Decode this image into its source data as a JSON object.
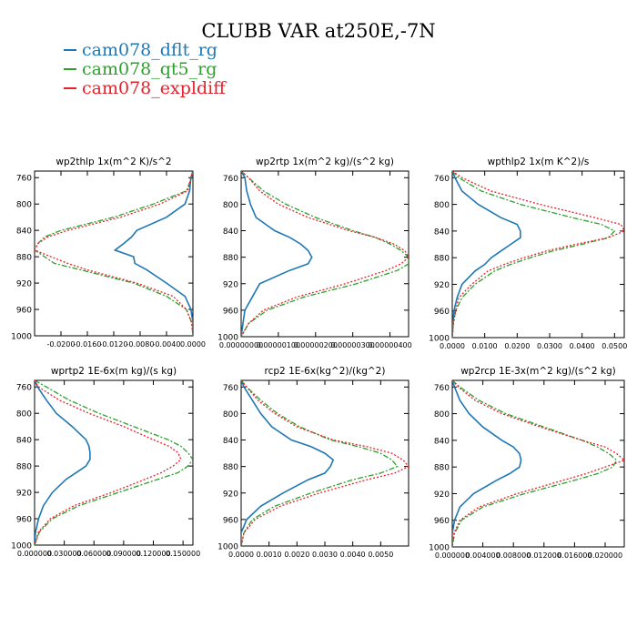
{
  "title": "CLUBB VAR at250E,-7N",
  "legend": [
    {
      "name": "cam078_dflt_rg",
      "color": "#1f77b4"
    },
    {
      "name": "cam078_qt5_rg",
      "color": "#2ca02c"
    },
    {
      "name": "cam078_expldiff",
      "color": "#e8202a"
    }
  ],
  "chart_data": [
    {
      "type": "line",
      "title": "wp2thlp   1x(m^2 K)/s^2",
      "xlim": [
        -0.024,
        0.0
      ],
      "ylim": [
        1000,
        750
      ],
      "x_ticks": [
        "-0.0200",
        "-0.0160",
        "-0.0120",
        "-0.0080",
        "-0.0040",
        "0.0000"
      ],
      "x_tick_values": [
        -0.02,
        -0.016,
        -0.012,
        -0.008,
        -0.004,
        0.0
      ],
      "y_ticks": [
        760,
        800,
        840,
        880,
        920,
        960,
        1000
      ],
      "y": [
        750,
        760,
        780,
        800,
        820,
        840,
        850,
        860,
        870,
        880,
        890,
        900,
        920,
        940,
        960,
        980,
        1000
      ],
      "series": [
        {
          "name": "cam078_dflt_rg",
          "values": [
            0.0,
            -0.0003,
            -0.0005,
            -0.0012,
            -0.004,
            -0.0085,
            -0.0093,
            -0.0105,
            -0.0118,
            -0.009,
            -0.0088,
            -0.007,
            -0.004,
            -0.0012,
            -0.0003,
            0.0,
            0.0
          ]
        },
        {
          "name": "cam078_qt5_rg",
          "values": [
            0.0,
            -0.0002,
            -0.001,
            -0.006,
            -0.012,
            -0.02,
            -0.0225,
            -0.0235,
            -0.024,
            -0.0225,
            -0.021,
            -0.017,
            -0.009,
            -0.004,
            -0.001,
            -0.0002,
            0.0
          ]
        },
        {
          "name": "cam078_expldiff",
          "values": [
            0.0,
            -0.0003,
            -0.0008,
            -0.005,
            -0.011,
            -0.019,
            -0.022,
            -0.0235,
            -0.024,
            -0.0215,
            -0.019,
            -0.016,
            -0.0085,
            -0.003,
            -0.001,
            -0.0002,
            0.0
          ]
        }
      ]
    },
    {
      "type": "line",
      "title": "wp2rtp   1x(m^2 kg)/(s^2 kg)",
      "xlim": [
        0.0,
        4.5e-06
      ],
      "ylim": [
        1000,
        750
      ],
      "x_ticks": [
        "0.00000000",
        "0.00000100",
        "0.00000200",
        "0.00000300",
        "0.00000400"
      ],
      "x_tick_values": [
        0.0,
        1e-06,
        2e-06,
        3e-06,
        4e-06
      ],
      "y_ticks": [
        760,
        800,
        840,
        880,
        920,
        960,
        1000
      ],
      "y": [
        750,
        760,
        780,
        800,
        820,
        840,
        850,
        860,
        870,
        880,
        890,
        900,
        920,
        940,
        960,
        980,
        1000
      ],
      "series": [
        {
          "name": "cam078_dflt_rg",
          "values": [
            0.0,
            1e-07,
            1.5e-07,
            2.5e-07,
            4e-07,
            9e-07,
            1.3e-06,
            1.6e-06,
            1.8e-06,
            1.9e-06,
            1.8e-06,
            1.3e-06,
            5e-07,
            3e-07,
            1e-07,
            5e-08,
            0.0
          ]
        },
        {
          "name": "cam078_qt5_rg",
          "values": [
            0.0,
            2e-07,
            6e-07,
            1.2e-06,
            2e-06,
            3e-06,
            3.6e-06,
            4e-06,
            4.3e-06,
            4.5e-06,
            4.5e-06,
            4.2e-06,
            3.1e-06,
            1.7e-06,
            7e-07,
            2e-07,
            0.0
          ]
        },
        {
          "name": "cam078_expldiff",
          "values": [
            0.0,
            2e-07,
            5e-07,
            1e-06,
            1.8e-06,
            2.9e-06,
            3.6e-06,
            4.1e-06,
            4.4e-06,
            4.5e-06,
            4.3e-06,
            3.9e-06,
            2.8e-06,
            1.5e-06,
            6e-07,
            2e-07,
            0.0
          ]
        }
      ]
    },
    {
      "type": "line",
      "title": "wpthlp2   1x(m K^2)/s",
      "xlim": [
        0.0,
        0.053
      ],
      "ylim": [
        1000,
        750
      ],
      "x_ticks": [
        "0.0000",
        "0.0100",
        "0.0200",
        "0.0300",
        "0.0400",
        "0.0500"
      ],
      "x_tick_values": [
        0.0,
        0.01,
        0.02,
        0.03,
        0.04,
        0.05
      ],
      "y_ticks": [
        760,
        800,
        840,
        880,
        920,
        960,
        1000
      ],
      "y": [
        750,
        760,
        780,
        800,
        820,
        830,
        840,
        850,
        860,
        870,
        880,
        890,
        900,
        920,
        940,
        960,
        980,
        1000
      ],
      "series": [
        {
          "name": "cam078_dflt_rg",
          "values": [
            0.0,
            0.0008,
            0.003,
            0.008,
            0.015,
            0.02,
            0.021,
            0.021,
            0.018,
            0.015,
            0.012,
            0.01,
            0.007,
            0.003,
            0.0015,
            0.0005,
            0.0002,
            0.0
          ]
        },
        {
          "name": "cam078_qt5_rg",
          "values": [
            0.0,
            0.002,
            0.009,
            0.021,
            0.037,
            0.046,
            0.05,
            0.048,
            0.04,
            0.031,
            0.024,
            0.018,
            0.013,
            0.007,
            0.003,
            0.001,
            0.0003,
            0.0
          ]
        },
        {
          "name": "cam078_expldiff",
          "values": [
            0.0,
            0.003,
            0.012,
            0.027,
            0.044,
            0.052,
            0.053,
            0.048,
            0.038,
            0.029,
            0.022,
            0.016,
            0.011,
            0.006,
            0.002,
            0.001,
            0.0003,
            0.0
          ]
        }
      ]
    },
    {
      "type": "line",
      "title": "wprtp2   1E-6x(m kg)/(s kg)",
      "xlim": [
        0.0,
        0.16
      ],
      "ylim": [
        1000,
        750
      ],
      "x_ticks": [
        "0.000000",
        "0.030000",
        "0.060000",
        "0.090000",
        "0.120000",
        "0.150000"
      ],
      "x_tick_values": [
        0.0,
        0.03,
        0.06,
        0.09,
        0.12,
        0.15
      ],
      "y_ticks": [
        760,
        800,
        840,
        880,
        920,
        960,
        1000
      ],
      "y": [
        750,
        760,
        780,
        800,
        820,
        840,
        850,
        860,
        870,
        880,
        890,
        900,
        920,
        940,
        960,
        980,
        1000
      ],
      "series": [
        {
          "name": "cam078_dflt_rg",
          "values": [
            0.0,
            0.003,
            0.012,
            0.022,
            0.038,
            0.052,
            0.055,
            0.056,
            0.056,
            0.052,
            0.042,
            0.032,
            0.018,
            0.009,
            0.004,
            0.001,
            0.0
          ]
        },
        {
          "name": "cam078_qt5_rg",
          "values": [
            0.0,
            0.012,
            0.035,
            0.065,
            0.1,
            0.135,
            0.148,
            0.155,
            0.16,
            0.155,
            0.145,
            0.125,
            0.085,
            0.045,
            0.018,
            0.005,
            0.0
          ]
        },
        {
          "name": "cam078_expldiff",
          "values": [
            0.0,
            0.004,
            0.025,
            0.055,
            0.09,
            0.12,
            0.136,
            0.145,
            0.148,
            0.14,
            0.128,
            0.112,
            0.078,
            0.04,
            0.016,
            0.004,
            0.0
          ]
        }
      ]
    },
    {
      "type": "line",
      "title": "rcp2   1E-6x(kg^2)/(kg^2)",
      "xlim": [
        0.0,
        0.006
      ],
      "ylim": [
        1000,
        750
      ],
      "x_ticks": [
        "0.0000",
        "0.0010",
        "0.0020",
        "0.0030",
        "0.0040",
        "0.0050"
      ],
      "x_tick_values": [
        0.0,
        0.001,
        0.002,
        0.003,
        0.004,
        0.005
      ],
      "y_ticks": [
        760,
        800,
        840,
        880,
        920,
        960,
        1000
      ],
      "y": [
        750,
        760,
        780,
        800,
        820,
        840,
        850,
        860,
        870,
        880,
        890,
        900,
        920,
        940,
        960,
        980,
        1000
      ],
      "series": [
        {
          "name": "cam078_dflt_rg",
          "values": [
            0.0,
            0.0001,
            0.0004,
            0.0007,
            0.0011,
            0.0018,
            0.0025,
            0.003,
            0.0033,
            0.0032,
            0.003,
            0.0024,
            0.0015,
            0.0007,
            0.0002,
            0.0,
            0.0
          ]
        },
        {
          "name": "cam078_qt5_rg",
          "values": [
            0.0,
            0.0002,
            0.0007,
            0.0013,
            0.0021,
            0.0032,
            0.0042,
            0.005,
            0.0054,
            0.0056,
            0.005,
            0.004,
            0.0025,
            0.0012,
            0.0004,
            0.0001,
            0.0
          ]
        },
        {
          "name": "cam078_expldiff",
          "values": [
            0.0,
            0.0002,
            0.0006,
            0.0012,
            0.002,
            0.0033,
            0.0045,
            0.0054,
            0.0058,
            0.006,
            0.0055,
            0.0045,
            0.0028,
            0.0014,
            0.0005,
            0.0001,
            0.0
          ]
        }
      ]
    },
    {
      "type": "line",
      "title": "wp2rcp   1E-3x(m^2 kg)/(s^2 kg)",
      "xlim": [
        0.0,
        0.0225
      ],
      "ylim": [
        1000,
        750
      ],
      "x_ticks": [
        "0.000000",
        "0.004000",
        "0.008000",
        "0.012000",
        "0.016000",
        "0.020000"
      ],
      "x_tick_values": [
        0.0,
        0.004,
        0.008,
        0.012,
        0.016,
        0.02
      ],
      "y_ticks": [
        760,
        800,
        840,
        880,
        920,
        960,
        1000
      ],
      "y": [
        750,
        760,
        780,
        800,
        820,
        840,
        850,
        860,
        870,
        880,
        890,
        900,
        920,
        940,
        960,
        980,
        1000
      ],
      "series": [
        {
          "name": "cam078_dflt_rg",
          "values": [
            0.0,
            0.0003,
            0.001,
            0.0022,
            0.004,
            0.0065,
            0.008,
            0.0088,
            0.009,
            0.0088,
            0.0075,
            0.0058,
            0.0028,
            0.001,
            0.0003,
            0.0,
            0.0
          ]
        },
        {
          "name": "cam078_qt5_rg",
          "values": [
            0.0,
            0.001,
            0.0035,
            0.007,
            0.012,
            0.017,
            0.019,
            0.0205,
            0.0215,
            0.021,
            0.019,
            0.016,
            0.0095,
            0.004,
            0.0012,
            0.0003,
            0.0
          ]
        },
        {
          "name": "cam078_expldiff",
          "values": [
            0.0,
            0.0008,
            0.003,
            0.0065,
            0.0115,
            0.017,
            0.02,
            0.0215,
            0.0225,
            0.02,
            0.0175,
            0.0145,
            0.0085,
            0.0035,
            0.001,
            0.0002,
            0.0
          ]
        }
      ]
    }
  ]
}
